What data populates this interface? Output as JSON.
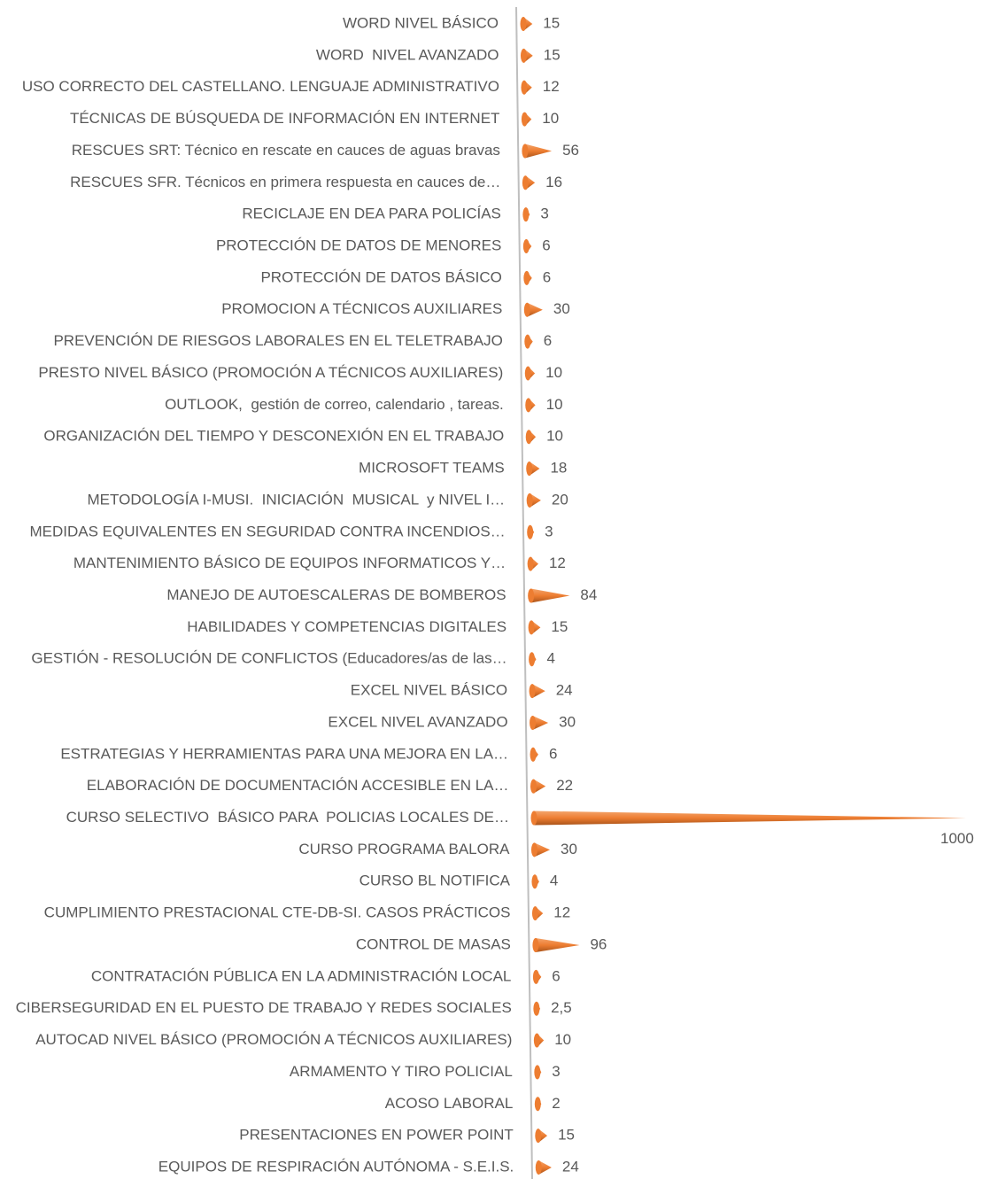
{
  "chart_data": {
    "type": "cone-bar",
    "categories": [
      "WORD NIVEL BÁSICO",
      "WORD  NIVEL AVANZADO",
      "USO CORRECTO DEL CASTELLANO. LENGUAJE ADMINISTRATIVO",
      "TÉCNICAS DE BÚSQUEDA DE INFORMACIÓN EN INTERNET",
      "RESCUES SRT: Técnico en rescate en cauces de aguas bravas",
      "RESCUES SFR. Técnicos en primera respuesta en cauces de…",
      "RECICLAJE EN DEA PARA POLICÍAS",
      "PROTECCIÓN DE DATOS DE MENORES",
      "PROTECCIÓN DE DATOS BÁSICO",
      "PROMOCION A TÉCNICOS AUXILIARES",
      "PREVENCIÓN DE RIESGOS LABORALES EN EL TELETRABAJO",
      "PRESTO NIVEL BÁSICO (PROMOCIÓN A TÉCNICOS AUXILIARES)",
      "OUTLOOK,  gestión de correo, calendario , tareas.",
      "ORGANIZACIÓN DEL TIEMPO Y DESCONEXIÓN EN EL TRABAJO",
      "MICROSOFT TEAMS",
      "METODOLOGÍA I-MUSI.  INICIACIÓN  MUSICAL  y NIVEL I…",
      "MEDIDAS EQUIVALENTES EN SEGURIDAD CONTRA INCENDIOS…",
      "MANTENIMIENTO BÁSICO DE EQUIPOS INFORMATICOS Y…",
      "MANEJO DE AUTOESCALERAS DE BOMBEROS",
      "HABILIDADES Y COMPETENCIAS DIGITALES",
      "GESTIÓN - RESOLUCIÓN DE CONFLICTOS (Educadores/as de las…",
      "EXCEL NIVEL BÁSICO",
      "EXCEL NIVEL AVANZADO",
      "ESTRATEGIAS Y HERRAMIENTAS PARA UNA MEJORA EN LA…",
      "ELABORACIÓN DE DOCUMENTACIÓN ACCESIBLE EN LA…",
      "CURSO SELECTIVO  BÁSICO PARA  POLICIAS LOCALES DE…",
      "CURSO PROGRAMA BALORA",
      "CURSO BL NOTIFICA",
      "CUMPLIMIENTO PRESTACIONAL CTE-DB-SI. CASOS PRÁCTICOS",
      "CONTROL DE MASAS",
      "CONTRATACIÓN PÚBLICA EN LA ADMINISTRACIÓN LOCAL",
      "CIBERSEGURIDAD EN EL PUESTO DE TRABAJO Y REDES SOCIALES",
      "AUTOCAD NIVEL BÁSICO (PROMOCIÓN A TÉCNICOS AUXILIARES)",
      "ARMAMENTO Y TIRO POLICIAL",
      "ACOSO LABORAL",
      "PRESENTACIONES EN POWER POINT",
      "EQUIPOS DE RESPIRACIÓN AUTÓNOMA - S.E.I.S."
    ],
    "values": [
      15,
      15,
      12,
      10,
      56,
      16,
      3,
      6,
      6,
      30,
      6,
      10,
      10,
      10,
      18,
      20,
      3,
      12,
      84,
      15,
      4,
      24,
      30,
      6,
      22,
      1000,
      30,
      4,
      12,
      96,
      6,
      2.5,
      10,
      3,
      2,
      15,
      24
    ],
    "value_labels": [
      "15",
      "15",
      "12",
      "10",
      "56",
      "16",
      "3",
      "6",
      "6",
      "30",
      "6",
      "10",
      "10",
      "10",
      "18",
      "20",
      "3",
      "12",
      "84",
      "15",
      "4",
      "24",
      "30",
      "6",
      "22",
      "1000",
      "30",
      "4",
      "12",
      "96",
      "6",
      "2,5",
      "10",
      "3",
      "2",
      "15",
      "24"
    ],
    "color": "#ed7d31",
    "xlim": [
      0,
      1000
    ]
  }
}
